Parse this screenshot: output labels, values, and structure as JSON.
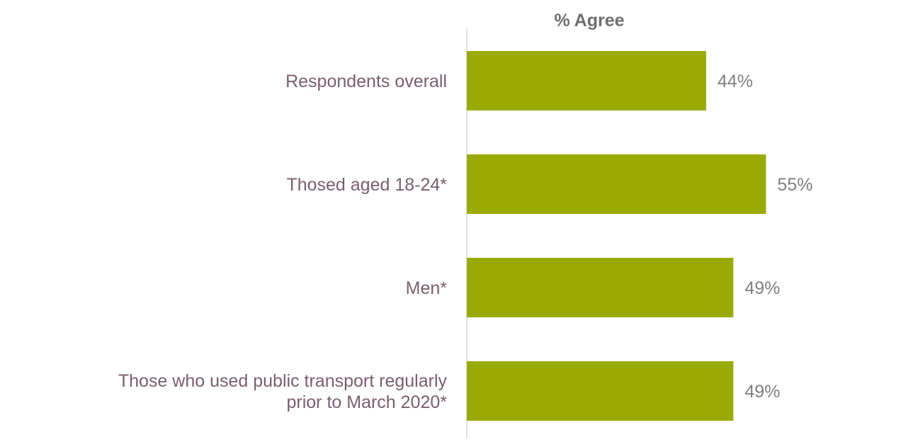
{
  "chart_data": {
    "type": "bar",
    "orientation": "horizontal",
    "title": "% Agree",
    "categories": [
      [
        "Respondents overall"
      ],
      [
        "Thosed aged 18-24*"
      ],
      [
        "Men*"
      ],
      [
        "Those who used public transport regularly",
        "prior to March 2020*"
      ]
    ],
    "values": [
      44,
      55,
      49,
      49
    ],
    "data_labels": [
      "44%",
      "55%",
      "49%",
      "49%"
    ],
    "value_unit": "%",
    "xlim": [
      0,
      100
    ],
    "grid": false,
    "legend": "none",
    "colors": {
      "bar": "#9aaa04",
      "category_text": "#7b5e6e",
      "value_text": "#7f7f7f",
      "title_text": "#6f6f6f",
      "axis": "#d9d9d9"
    }
  }
}
